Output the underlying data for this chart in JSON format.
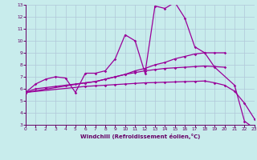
{
  "xlabel": "Windchill (Refroidissement éolien,°C)",
  "xlim": [
    0,
    23
  ],
  "ylim": [
    3,
    13
  ],
  "xticks": [
    0,
    1,
    2,
    3,
    4,
    5,
    6,
    7,
    8,
    9,
    10,
    11,
    12,
    13,
    14,
    15,
    16,
    17,
    18,
    19,
    20,
    21,
    22,
    23
  ],
  "yticks": [
    3,
    4,
    5,
    6,
    7,
    8,
    9,
    10,
    11,
    12,
    13
  ],
  "background_color": "#c8ecec",
  "grid_color": "#b0c8d8",
  "line_color": "#990099",
  "ax_color": "#660066",
  "series1_x": [
    0,
    1,
    2,
    3,
    4,
    5,
    6,
    7,
    8,
    9,
    10,
    11,
    12,
    13,
    14,
    15,
    16,
    17,
    18,
    19,
    21,
    22,
    23
  ],
  "series1_y": [
    5.7,
    6.4,
    6.8,
    7.0,
    6.9,
    5.7,
    7.3,
    7.3,
    7.5,
    8.5,
    10.5,
    10.0,
    7.3,
    12.9,
    12.7,
    13.2,
    11.9,
    9.5,
    9.0,
    7.8,
    6.3,
    3.3,
    2.7
  ],
  "series2_x": [
    0,
    1,
    2,
    3,
    4,
    5,
    6,
    7,
    8,
    9,
    10,
    11,
    12,
    13,
    14,
    15,
    16,
    17,
    18,
    19,
    20
  ],
  "series2_y": [
    5.7,
    6.0,
    6.1,
    6.2,
    6.3,
    6.4,
    6.5,
    6.6,
    6.8,
    7.0,
    7.2,
    7.5,
    7.7,
    8.0,
    8.2,
    8.5,
    8.7,
    8.9,
    9.0,
    9.0,
    9.0
  ],
  "series3_x": [
    0,
    6,
    7,
    8,
    9,
    10,
    11,
    12,
    13,
    14,
    15,
    16,
    17,
    18,
    19,
    20
  ],
  "series3_y": [
    5.7,
    6.5,
    6.6,
    6.8,
    7.0,
    7.2,
    7.35,
    7.5,
    7.6,
    7.7,
    7.75,
    7.8,
    7.85,
    7.9,
    7.85,
    7.8
  ],
  "series4_x": [
    0,
    6,
    7,
    8,
    9,
    10,
    11,
    12,
    13,
    14,
    15,
    16,
    17,
    18,
    19,
    20,
    21,
    22,
    23
  ],
  "series4_y": [
    5.7,
    6.2,
    6.25,
    6.3,
    6.35,
    6.4,
    6.45,
    6.5,
    6.52,
    6.55,
    6.57,
    6.6,
    6.62,
    6.65,
    6.5,
    6.3,
    5.8,
    4.8,
    3.5
  ]
}
